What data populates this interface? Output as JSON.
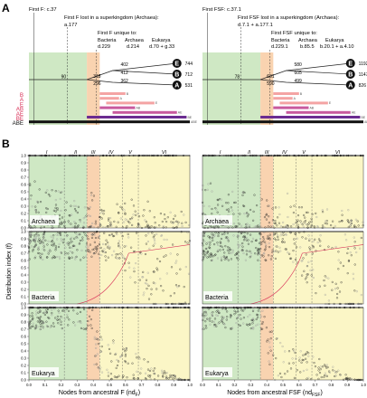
{
  "panel_labels": {
    "a": "A",
    "b": "B"
  },
  "top_left": {
    "first_event": "First F: c.37",
    "lost_event": "First F lost in a superkingdom (Archaea):",
    "lost_code": "a.177",
    "unique_title": "First F unique to:",
    "unique_groups": [
      "Bacteria",
      "Archaea",
      "Eukarya"
    ],
    "unique_codes": [
      "d.229",
      "d.214",
      "d.70 + g.33"
    ],
    "root_count": "90",
    "branch_counts": [
      "318",
      "296",
      "402",
      "412",
      "362"
    ],
    "tip_counts": [
      "744",
      "712",
      "531"
    ]
  },
  "top_right": {
    "first_event": "First FSF: c.37.1",
    "lost_event": "First FSF lost in a superkingdom (Archaea):",
    "lost_code": "d.7.1 + a.177.1",
    "unique_title": "First FSF unique to:",
    "unique_groups": [
      "Bacteria",
      "Archaea",
      "Eukarya"
    ],
    "unique_codes": [
      "d.229.1",
      "b.85.5",
      "b.20.1 + a.4.10"
    ],
    "root_count": "78",
    "branch_counts": [
      "631",
      "590",
      "580",
      "605",
      "499"
    ],
    "tip_counts": [
      "1192",
      "1147",
      "826"
    ]
  },
  "tips": [
    "E",
    "B",
    "A"
  ],
  "set_labels": [
    "B",
    "A",
    "E",
    "AB",
    "AE",
    "BE",
    "ABE"
  ],
  "set_colors": {
    "B": "#f4a4a4",
    "A": "#f4a4a4",
    "E": "#f4a4a4",
    "AB": "#c85a9e",
    "AE": "#c85a9e",
    "BE": "#6b2c91",
    "ABE": "#111111"
  },
  "phase_labels": [
    "I",
    "II",
    "III",
    "IV",
    "V",
    "VI"
  ],
  "panels": [
    "Archaea",
    "Bacteria",
    "Eukarya"
  ],
  "y_axis_label": "Distribution index (f)",
  "y_ticks": [
    "0.0",
    "0.1",
    "0.2",
    "0.3",
    "0.4",
    "0.5",
    "0.6",
    "0.7",
    "0.8",
    "0.9",
    "1.0"
  ],
  "x_ticks": [
    "0.0",
    "0.1",
    "0.2",
    "0.3",
    "0.4",
    "0.5",
    "0.6",
    "0.7",
    "0.8",
    "0.9",
    "1.0"
  ],
  "x_label_left": "Nodes from ancestral F (nd",
  "x_label_left_sub": "F",
  "x_label_right": "Nodes from ancestral FSF (nd",
  "x_label_right_sub": "FSF",
  "x_label_close": ")",
  "phase_colors": {
    "green": "#cfe8c4",
    "orange": "#f9d3b0",
    "yellow": "#fbf6c6"
  }
}
